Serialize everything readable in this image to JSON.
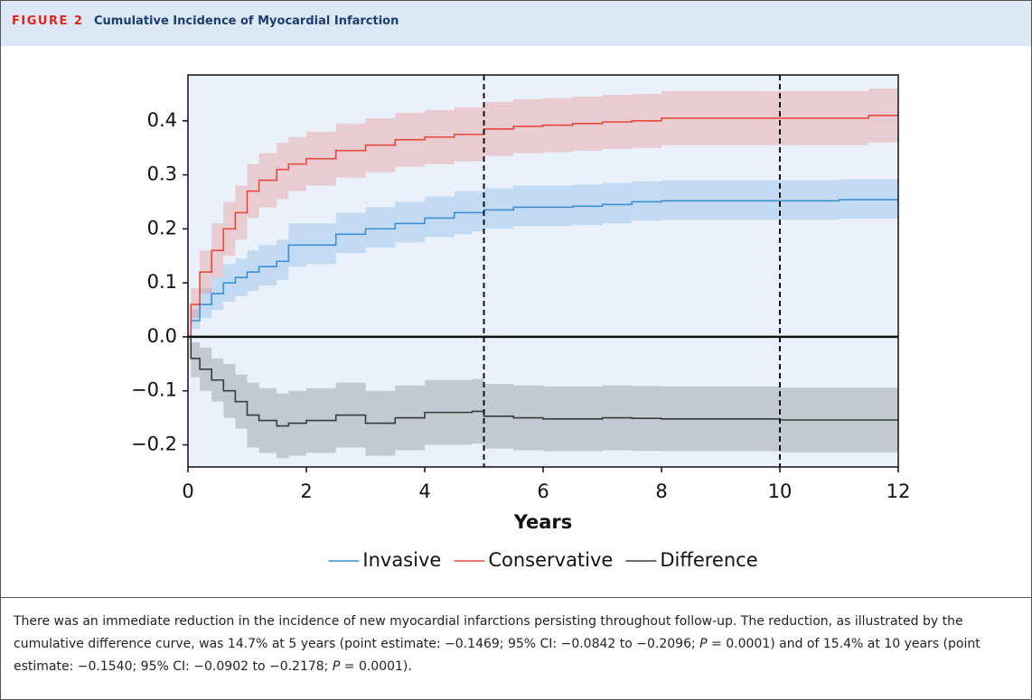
{
  "header": {
    "label": "FIGURE 2",
    "title": "Cumulative Incidence of Myocardial Infarction"
  },
  "caption": [
    "There was an immediate reduction in the incidence of new myocardial infarctions persisting throughout follow-up. The reduction, as illustrated by the cumulative difference curve, was 14.7% at 5 years (point estimate: −0.1469; 95% CI: −0.0842 to −0.2096; ",
    "P",
    " = 0.0001) and of 15.4% at 10 years (point estimate: −0.1540; 95% CI: −0.0902 to −0.2178; ",
    "P",
    " = 0.0001)."
  ],
  "chart_data": {
    "type": "step",
    "xlabel": "Years",
    "x": [
      0,
      0.05,
      0.2,
      0.4,
      0.6,
      0.8,
      1.0,
      1.2,
      1.5,
      1.7,
      2,
      2.5,
      3,
      3.5,
      4,
      4.5,
      4.8,
      5,
      5.5,
      6,
      6.5,
      7,
      7.5,
      8,
      10,
      11,
      11.5,
      12
    ],
    "series": [
      {
        "name": "Invasive",
        "color": "#3d8fd1",
        "values": [
          0,
          0.03,
          0.06,
          0.08,
          0.1,
          0.11,
          0.12,
          0.13,
          0.14,
          0.17,
          0.17,
          0.19,
          0.2,
          0.21,
          0.22,
          0.23,
          0.23,
          0.235,
          0.24,
          0.24,
          0.242,
          0.245,
          0.25,
          0.252,
          0.252,
          0.254,
          0.254,
          0.254
        ],
        "lower": [
          0,
          0.015,
          0.035,
          0.05,
          0.065,
          0.075,
          0.085,
          0.095,
          0.105,
          0.13,
          0.135,
          0.155,
          0.165,
          0.175,
          0.185,
          0.19,
          0.195,
          0.2,
          0.205,
          0.205,
          0.207,
          0.21,
          0.215,
          0.217,
          0.217,
          0.219,
          0.219,
          0.219
        ],
        "upper": [
          0,
          0.05,
          0.09,
          0.11,
          0.135,
          0.145,
          0.16,
          0.17,
          0.18,
          0.21,
          0.21,
          0.23,
          0.24,
          0.25,
          0.26,
          0.27,
          0.27,
          0.275,
          0.28,
          0.28,
          0.282,
          0.285,
          0.288,
          0.29,
          0.29,
          0.292,
          0.292,
          0.292
        ]
      },
      {
        "name": "Conservative",
        "color": "#e8483a",
        "values": [
          0,
          0.06,
          0.12,
          0.16,
          0.2,
          0.23,
          0.27,
          0.29,
          0.31,
          0.32,
          0.33,
          0.345,
          0.355,
          0.365,
          0.37,
          0.375,
          0.375,
          0.385,
          0.39,
          0.392,
          0.395,
          0.398,
          0.4,
          0.405,
          0.405,
          0.405,
          0.41,
          0.41
        ],
        "lower": [
          0,
          0.035,
          0.08,
          0.11,
          0.15,
          0.18,
          0.22,
          0.24,
          0.255,
          0.27,
          0.28,
          0.295,
          0.305,
          0.315,
          0.32,
          0.325,
          0.325,
          0.335,
          0.34,
          0.342,
          0.345,
          0.348,
          0.35,
          0.355,
          0.355,
          0.355,
          0.36,
          0.36
        ],
        "upper": [
          0,
          0.09,
          0.16,
          0.21,
          0.25,
          0.28,
          0.32,
          0.34,
          0.36,
          0.37,
          0.38,
          0.395,
          0.405,
          0.415,
          0.42,
          0.425,
          0.425,
          0.435,
          0.44,
          0.442,
          0.445,
          0.448,
          0.45,
          0.455,
          0.455,
          0.455,
          0.46,
          0.46
        ]
      },
      {
        "name": "Difference",
        "color": "#3a3a3a",
        "values": [
          0,
          -0.04,
          -0.06,
          -0.08,
          -0.1,
          -0.12,
          -0.145,
          -0.155,
          -0.165,
          -0.16,
          -0.155,
          -0.145,
          -0.16,
          -0.15,
          -0.14,
          -0.14,
          -0.138,
          -0.147,
          -0.15,
          -0.152,
          -0.152,
          -0.15,
          -0.151,
          -0.152,
          -0.154,
          -0.154,
          -0.154,
          -0.154
        ],
        "lower": [
          0,
          -0.075,
          -0.1,
          -0.12,
          -0.15,
          -0.17,
          -0.205,
          -0.215,
          -0.225,
          -0.22,
          -0.215,
          -0.205,
          -0.22,
          -0.21,
          -0.2,
          -0.2,
          -0.198,
          -0.207,
          -0.21,
          -0.212,
          -0.212,
          -0.21,
          -0.211,
          -0.212,
          -0.214,
          -0.214,
          -0.214,
          -0.214
        ],
        "upper": [
          0,
          -0.01,
          -0.02,
          -0.04,
          -0.05,
          -0.07,
          -0.085,
          -0.095,
          -0.105,
          -0.1,
          -0.095,
          -0.085,
          -0.1,
          -0.09,
          -0.08,
          -0.08,
          -0.078,
          -0.087,
          -0.09,
          -0.092,
          -0.092,
          -0.09,
          -0.091,
          -0.092,
          -0.094,
          -0.094,
          -0.094,
          -0.094
        ]
      }
    ],
    "xlim": [
      0,
      12
    ],
    "xticks": [
      0,
      2,
      4,
      6,
      8,
      10,
      12
    ],
    "ylim": [
      -0.241,
      0.485
    ],
    "yticks": [
      {
        "value": -0.2,
        "label": "−0.2"
      },
      {
        "value": -0.1,
        "label": "−0.1"
      },
      {
        "value": 0,
        "label": "0.0"
      },
      0.1,
      0.2,
      0.3,
      0.4
    ],
    "reference_line": 0,
    "vlines": [
      5,
      10
    ],
    "legend": "bottom"
  }
}
